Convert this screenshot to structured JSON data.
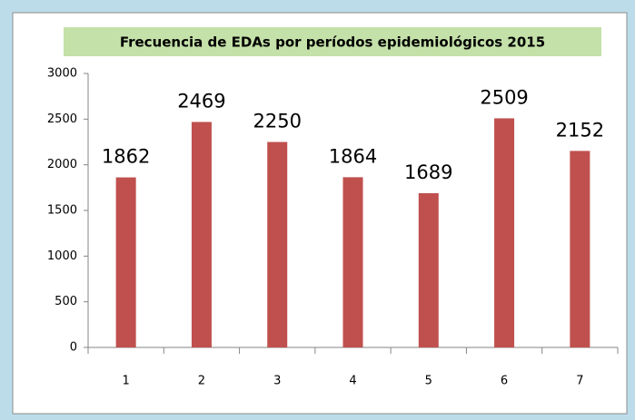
{
  "chart_data": {
    "type": "bar",
    "title": "Frecuencia de EDAs por períodos epidemiológicos 2015",
    "categories": [
      "1",
      "2",
      "3",
      "4",
      "5",
      "6",
      "7"
    ],
    "values": [
      1862,
      2469,
      2250,
      1864,
      1689,
      2509,
      2152
    ],
    "color": "#c0504d",
    "ylim": [
      0,
      3000
    ],
    "yticks": [
      0,
      500,
      1000,
      1500,
      2000,
      2500,
      3000
    ],
    "grid": false
  }
}
